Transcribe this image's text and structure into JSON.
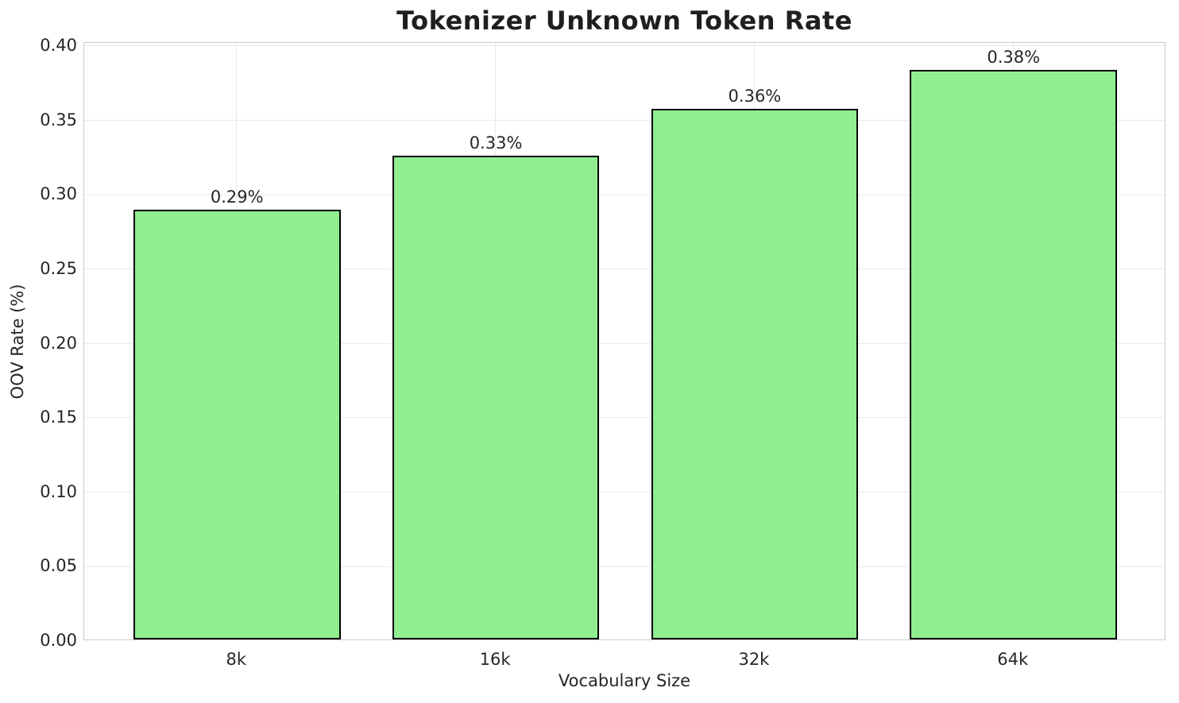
{
  "chart_data": {
    "type": "bar",
    "title": "Tokenizer Unknown Token Rate",
    "xlabel": "Vocabulary Size",
    "ylabel": "OOV Rate (%)",
    "categories": [
      "8k",
      "16k",
      "32k",
      "64k"
    ],
    "values": [
      0.289,
      0.325,
      0.357,
      0.383
    ],
    "bar_labels": [
      "0.29%",
      "0.33%",
      "0.36%",
      "0.38%"
    ],
    "ylim": [
      0.0,
      0.4
    ],
    "xlim": [
      -0.59,
      3.59
    ],
    "yticks": [
      0.0,
      0.05,
      0.1,
      0.15,
      0.2,
      0.25,
      0.3,
      0.35,
      0.4
    ],
    "ytick_labels": [
      "0.00",
      "0.05",
      "0.10",
      "0.15",
      "0.20",
      "0.25",
      "0.30",
      "0.35",
      "0.40"
    ],
    "grid": true,
    "legend": null,
    "bar_width_fraction": 0.8,
    "colors": {
      "bar_fill": "#90EE90",
      "bar_edge": "#000000",
      "grid": "#e9e9e9",
      "spine": "#cbcbcb",
      "text": "#262626",
      "background": "#ffffff"
    }
  }
}
